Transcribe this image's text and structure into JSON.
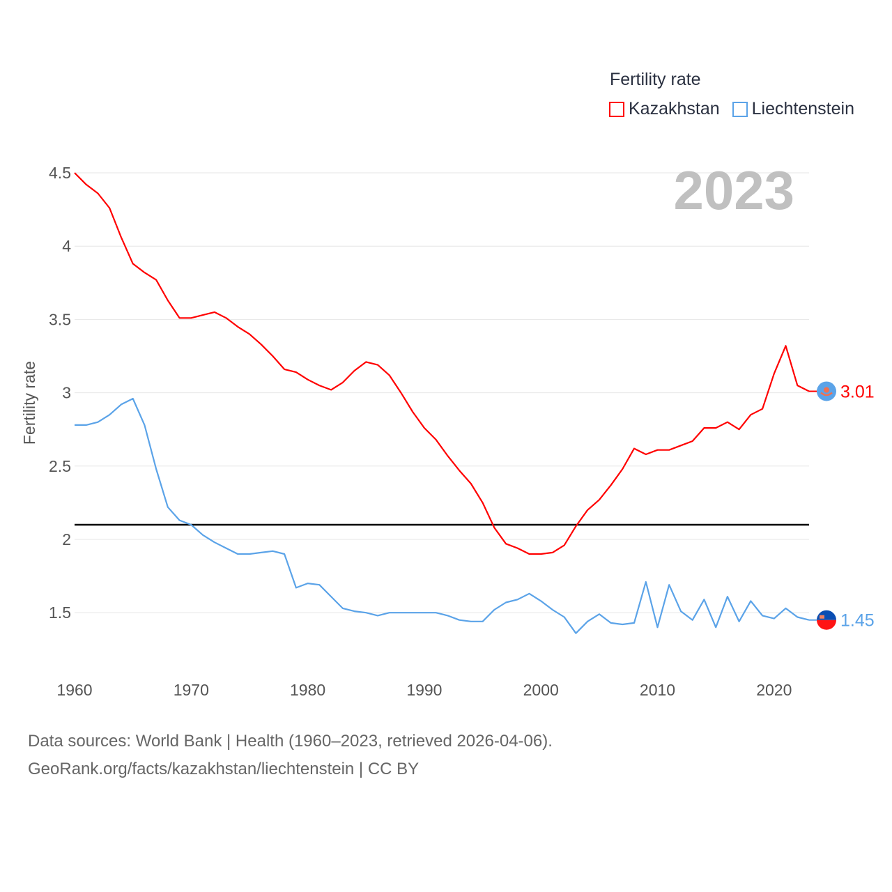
{
  "legend": {
    "title": "Fertility rate",
    "items": [
      "Kazakhstan",
      "Liechtenstein"
    ]
  },
  "year_label": "2023",
  "chart_data": {
    "type": "line",
    "ylabel": "Fertility rate",
    "xlabel": "",
    "xlim": [
      1960,
      2023
    ],
    "ylim": [
      1.2,
      4.5
    ],
    "x_ticks": [
      1960,
      1970,
      1980,
      1990,
      2000,
      2010,
      2020
    ],
    "y_ticks": [
      1.5,
      2,
      2.5,
      3,
      3.5,
      4,
      4.5
    ],
    "y_tick_labels": [
      "1.5",
      "2",
      "2.5",
      "3",
      "3.5",
      "4",
      "4.5"
    ],
    "x_tick_labels": [
      "1960",
      "1970",
      "1980",
      "1990",
      "2000",
      "2010",
      "2020"
    ],
    "grid": true,
    "reference_line": {
      "value": 2.1,
      "color": "#000000"
    },
    "legend_position": "top-right",
    "x": [
      1960,
      1961,
      1962,
      1963,
      1964,
      1965,
      1966,
      1967,
      1968,
      1969,
      1970,
      1971,
      1972,
      1973,
      1974,
      1975,
      1976,
      1977,
      1978,
      1979,
      1980,
      1981,
      1982,
      1983,
      1984,
      1985,
      1986,
      1987,
      1988,
      1989,
      1990,
      1991,
      1992,
      1993,
      1994,
      1995,
      1996,
      1997,
      1998,
      1999,
      2000,
      2001,
      2002,
      2003,
      2004,
      2005,
      2006,
      2007,
      2008,
      2009,
      2010,
      2011,
      2012,
      2013,
      2014,
      2015,
      2016,
      2017,
      2018,
      2019,
      2020,
      2021,
      2022,
      2023
    ],
    "series": [
      {
        "name": "Kazakhstan",
        "color": "#ff0000",
        "end_label": "3.01",
        "values": [
          4.5,
          4.42,
          4.36,
          4.26,
          4.06,
          3.88,
          3.82,
          3.77,
          3.63,
          3.51,
          3.51,
          3.53,
          3.55,
          3.51,
          3.45,
          3.4,
          3.33,
          3.25,
          3.16,
          3.14,
          3.09,
          3.05,
          3.02,
          3.07,
          3.15,
          3.21,
          3.19,
          3.12,
          3.0,
          2.87,
          2.76,
          2.68,
          2.57,
          2.47,
          2.38,
          2.25,
          2.08,
          1.97,
          1.94,
          1.9,
          1.9,
          1.91,
          1.96,
          2.09,
          2.2,
          2.27,
          2.37,
          2.48,
          2.62,
          2.58,
          2.61,
          2.61,
          2.64,
          2.67,
          2.76,
          2.76,
          2.8,
          2.75,
          2.85,
          2.89,
          3.13,
          3.32,
          3.05,
          3.01
        ]
      },
      {
        "name": "Liechtenstein",
        "color": "#5ba3e8",
        "end_label": "1.45",
        "values": [
          2.78,
          2.78,
          2.8,
          2.85,
          2.92,
          2.96,
          2.78,
          2.48,
          2.22,
          2.13,
          2.1,
          2.03,
          1.98,
          1.94,
          1.9,
          1.9,
          1.91,
          1.92,
          1.9,
          1.67,
          1.7,
          1.69,
          1.61,
          1.53,
          1.51,
          1.5,
          1.48,
          1.5,
          1.5,
          1.5,
          1.5,
          1.5,
          1.48,
          1.45,
          1.44,
          1.44,
          1.52,
          1.57,
          1.59,
          1.63,
          1.58,
          1.52,
          1.47,
          1.36,
          1.44,
          1.49,
          1.43,
          1.42,
          1.43,
          1.71,
          1.4,
          1.69,
          1.51,
          1.45,
          1.59,
          1.4,
          1.61,
          1.44,
          1.58,
          1.48,
          1.46,
          1.53,
          1.47,
          1.45
        ]
      }
    ]
  },
  "footer": {
    "sources": "Data sources: World Bank | Health (1960–2023, retrieved 2026-04-06).",
    "attribution": "GeoRank.org/facts/kazakhstan/liechtenstein | CC BY"
  }
}
